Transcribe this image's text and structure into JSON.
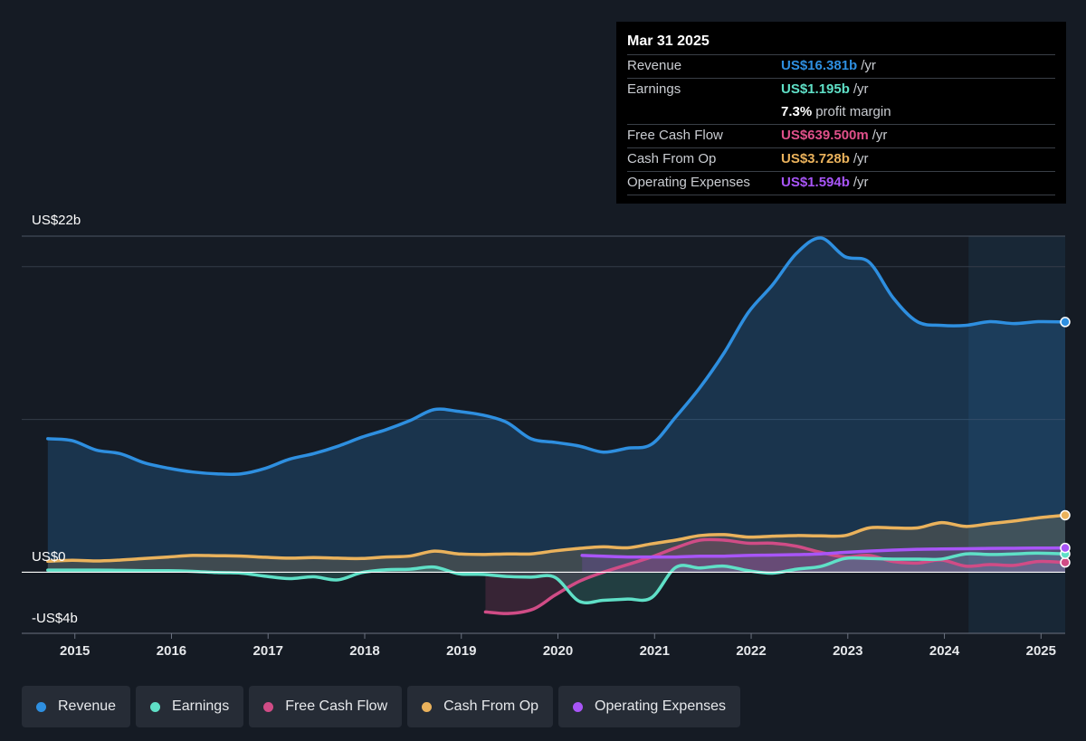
{
  "tooltip": {
    "date": "Mar 31 2025",
    "rows": [
      {
        "label": "Revenue",
        "value": "US$16.381b",
        "unit": "/yr",
        "color": "#2e8fe0"
      },
      {
        "label": "Earnings",
        "value": "US$1.195b",
        "unit": "/yr",
        "color": "#5fe0c7"
      },
      {
        "label": "",
        "value": "7.3%",
        "unit": "profit margin",
        "color": "#ffffff"
      },
      {
        "label": "Free Cash Flow",
        "value": "US$639.500m",
        "unit": "/yr",
        "color": "#e0508a"
      },
      {
        "label": "Cash From Op",
        "value": "US$3.728b",
        "unit": "/yr",
        "color": "#eab25c"
      },
      {
        "label": "Operating Expenses",
        "value": "US$1.594b",
        "unit": "/yr",
        "color": "#a855f7"
      }
    ]
  },
  "legend": [
    {
      "label": "Revenue",
      "color": "#2e8fe0"
    },
    {
      "label": "Earnings",
      "color": "#5fe0c7"
    },
    {
      "label": "Free Cash Flow",
      "color": "#d04c86"
    },
    {
      "label": "Cash From Op",
      "color": "#eab25c"
    },
    {
      "label": "Operating Expenses",
      "color": "#a855f7"
    }
  ],
  "chart_data": {
    "type": "line",
    "y_axis_labels": [
      "US$22b",
      "US$0",
      "-US$4b"
    ],
    "ylim": [
      -4,
      22
    ],
    "xlim": [
      2014.45,
      2025.25
    ],
    "x_ticks": [
      "2015",
      "2016",
      "2017",
      "2018",
      "2019",
      "2020",
      "2021",
      "2022",
      "2023",
      "2024",
      "2025"
    ],
    "forecast_start": 2024.25,
    "legend_position": "bottom",
    "grid": true,
    "series": [
      {
        "name": "Revenue",
        "color": "#2e8fe0",
        "fill": true,
        "points": [
          [
            2014.72,
            8.74
          ],
          [
            2014.97,
            8.62
          ],
          [
            2015.22,
            8.0
          ],
          [
            2015.47,
            7.76
          ],
          [
            2015.72,
            7.16
          ],
          [
            2015.97,
            6.81
          ],
          [
            2016.22,
            6.56
          ],
          [
            2016.47,
            6.44
          ],
          [
            2016.72,
            6.44
          ],
          [
            2016.97,
            6.8
          ],
          [
            2017.22,
            7.4
          ],
          [
            2017.47,
            7.76
          ],
          [
            2017.72,
            8.24
          ],
          [
            2017.97,
            8.84
          ],
          [
            2018.22,
            9.33
          ],
          [
            2018.47,
            9.93
          ],
          [
            2018.72,
            10.65
          ],
          [
            2018.97,
            10.53
          ],
          [
            2019.22,
            10.29
          ],
          [
            2019.47,
            9.81
          ],
          [
            2019.72,
            8.74
          ],
          [
            2019.97,
            8.5
          ],
          [
            2020.22,
            8.26
          ],
          [
            2020.47,
            7.86
          ],
          [
            2020.72,
            8.12
          ],
          [
            2020.97,
            8.38
          ],
          [
            2021.22,
            10.17
          ],
          [
            2021.47,
            12.09
          ],
          [
            2021.72,
            14.36
          ],
          [
            2021.97,
            17.0
          ],
          [
            2022.22,
            18.8
          ],
          [
            2022.47,
            20.88
          ],
          [
            2022.72,
            21.88
          ],
          [
            2022.97,
            20.66
          ],
          [
            2023.22,
            20.3
          ],
          [
            2023.47,
            17.96
          ],
          [
            2023.72,
            16.4
          ],
          [
            2023.97,
            16.16
          ],
          [
            2024.22,
            16.16
          ],
          [
            2024.47,
            16.4
          ],
          [
            2024.72,
            16.28
          ],
          [
            2024.97,
            16.4
          ],
          [
            2025.25,
            16.38
          ]
        ]
      },
      {
        "name": "Cash From Op",
        "color": "#eab25c",
        "fill": true,
        "points": [
          [
            2014.72,
            0.72
          ],
          [
            2014.97,
            0.78
          ],
          [
            2015.22,
            0.74
          ],
          [
            2015.47,
            0.8
          ],
          [
            2015.72,
            0.9
          ],
          [
            2015.97,
            1.0
          ],
          [
            2016.22,
            1.1
          ],
          [
            2016.47,
            1.08
          ],
          [
            2016.72,
            1.06
          ],
          [
            2016.97,
            0.98
          ],
          [
            2017.22,
            0.92
          ],
          [
            2017.47,
            0.96
          ],
          [
            2017.72,
            0.92
          ],
          [
            2017.97,
            0.9
          ],
          [
            2018.22,
            1.0
          ],
          [
            2018.47,
            1.06
          ],
          [
            2018.72,
            1.38
          ],
          [
            2018.97,
            1.2
          ],
          [
            2019.22,
            1.16
          ],
          [
            2019.47,
            1.2
          ],
          [
            2019.72,
            1.2
          ],
          [
            2019.97,
            1.4
          ],
          [
            2020.22,
            1.56
          ],
          [
            2020.47,
            1.66
          ],
          [
            2020.72,
            1.6
          ],
          [
            2020.97,
            1.86
          ],
          [
            2021.22,
            2.1
          ],
          [
            2021.47,
            2.4
          ],
          [
            2021.72,
            2.46
          ],
          [
            2021.97,
            2.3
          ],
          [
            2022.22,
            2.36
          ],
          [
            2022.47,
            2.4
          ],
          [
            2022.72,
            2.38
          ],
          [
            2022.97,
            2.4
          ],
          [
            2023.22,
            2.9
          ],
          [
            2023.47,
            2.9
          ],
          [
            2023.72,
            2.9
          ],
          [
            2023.97,
            3.25
          ],
          [
            2024.22,
            3.0
          ],
          [
            2024.47,
            3.18
          ],
          [
            2024.72,
            3.35
          ],
          [
            2024.97,
            3.56
          ],
          [
            2025.25,
            3.73
          ]
        ]
      },
      {
        "name": "Free Cash Flow",
        "color": "#d04c86",
        "fill": true,
        "points": [
          [
            2019.25,
            -2.6
          ],
          [
            2019.5,
            -2.7
          ],
          [
            2019.75,
            -2.4
          ],
          [
            2019.97,
            -1.5
          ],
          [
            2020.22,
            -0.6
          ],
          [
            2020.47,
            0.0
          ],
          [
            2020.72,
            0.5
          ],
          [
            2020.97,
            1.0
          ],
          [
            2021.22,
            1.6
          ],
          [
            2021.47,
            2.1
          ],
          [
            2021.72,
            2.1
          ],
          [
            2021.97,
            1.9
          ],
          [
            2022.22,
            1.9
          ],
          [
            2022.47,
            1.7
          ],
          [
            2022.72,
            1.3
          ],
          [
            2022.97,
            1.0
          ],
          [
            2023.22,
            1.1
          ],
          [
            2023.47,
            0.7
          ],
          [
            2023.72,
            0.6
          ],
          [
            2023.97,
            0.8
          ],
          [
            2024.22,
            0.4
          ],
          [
            2024.47,
            0.5
          ],
          [
            2024.72,
            0.45
          ],
          [
            2024.97,
            0.7
          ],
          [
            2025.25,
            0.64
          ]
        ]
      },
      {
        "name": "Earnings",
        "color": "#5fe0c7",
        "fill": true,
        "points": [
          [
            2014.72,
            0.14
          ],
          [
            2014.97,
            0.14
          ],
          [
            2015.22,
            0.14
          ],
          [
            2015.47,
            0.12
          ],
          [
            2015.72,
            0.1
          ],
          [
            2015.97,
            0.1
          ],
          [
            2016.22,
            0.06
          ],
          [
            2016.47,
            -0.02
          ],
          [
            2016.72,
            -0.06
          ],
          [
            2016.97,
            -0.26
          ],
          [
            2017.22,
            -0.42
          ],
          [
            2017.47,
            -0.3
          ],
          [
            2017.72,
            -0.5
          ],
          [
            2017.97,
            -0.02
          ],
          [
            2018.22,
            0.16
          ],
          [
            2018.47,
            0.2
          ],
          [
            2018.72,
            0.34
          ],
          [
            2018.97,
            -0.1
          ],
          [
            2019.22,
            -0.14
          ],
          [
            2019.47,
            -0.28
          ],
          [
            2019.72,
            -0.32
          ],
          [
            2019.97,
            -0.34
          ],
          [
            2020.22,
            -1.9
          ],
          [
            2020.47,
            -1.84
          ],
          [
            2020.72,
            -1.76
          ],
          [
            2020.97,
            -1.66
          ],
          [
            2021.22,
            0.32
          ],
          [
            2021.47,
            0.28
          ],
          [
            2021.72,
            0.4
          ],
          [
            2021.97,
            0.1
          ],
          [
            2022.22,
            -0.06
          ],
          [
            2022.47,
            0.2
          ],
          [
            2022.72,
            0.38
          ],
          [
            2022.97,
            0.9
          ],
          [
            2023.22,
            0.9
          ],
          [
            2023.47,
            0.86
          ],
          [
            2023.72,
            0.86
          ],
          [
            2023.97,
            0.86
          ],
          [
            2024.22,
            1.2
          ],
          [
            2024.47,
            1.16
          ],
          [
            2024.72,
            1.2
          ],
          [
            2024.97,
            1.25
          ],
          [
            2025.25,
            1.2
          ]
        ]
      },
      {
        "name": "Operating Expenses",
        "color": "#a855f7",
        "fill": true,
        "points": [
          [
            2020.25,
            1.1
          ],
          [
            2020.47,
            1.05
          ],
          [
            2020.72,
            1.0
          ],
          [
            2020.97,
            1.0
          ],
          [
            2021.22,
            1.0
          ],
          [
            2021.47,
            1.05
          ],
          [
            2021.72,
            1.05
          ],
          [
            2021.97,
            1.1
          ],
          [
            2022.22,
            1.12
          ],
          [
            2022.47,
            1.15
          ],
          [
            2022.72,
            1.2
          ],
          [
            2022.97,
            1.3
          ],
          [
            2023.22,
            1.38
          ],
          [
            2023.47,
            1.45
          ],
          [
            2023.72,
            1.5
          ],
          [
            2023.97,
            1.52
          ],
          [
            2024.22,
            1.54
          ],
          [
            2024.47,
            1.56
          ],
          [
            2024.72,
            1.57
          ],
          [
            2024.97,
            1.58
          ],
          [
            2025.25,
            1.59
          ]
        ]
      }
    ]
  }
}
